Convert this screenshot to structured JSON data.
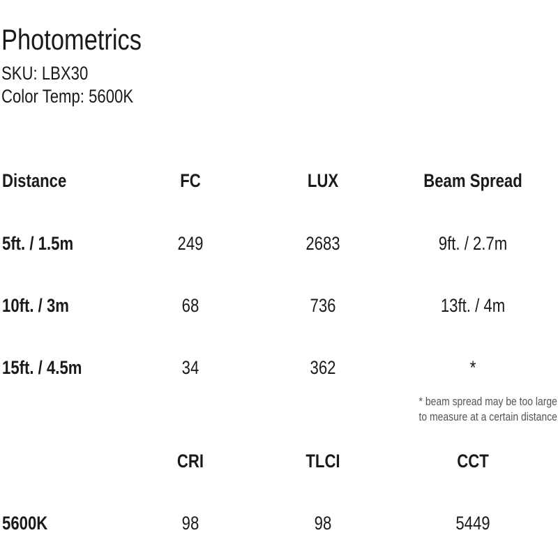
{
  "title": "Photometrics",
  "sku": "SKU: LBX30",
  "color_temp": "Color Temp: 5600K",
  "photometric_table": {
    "headers": [
      "Distance",
      "FC",
      "LUX",
      "Beam Spread"
    ],
    "rows": [
      [
        "5ft. / 1.5m",
        "249",
        "2683",
        "9ft. / 2.7m"
      ],
      [
        "10ft. / 3m",
        "68",
        "736",
        "13ft. / 4m"
      ],
      [
        "15ft. / 4.5m",
        "34",
        "362",
        "*"
      ]
    ],
    "footnote": [
      "* beam spread may be too large",
      "to measure at a certain distance"
    ]
  },
  "color_table": {
    "headers": [
      "",
      "CRI",
      "TLCI",
      "CCT"
    ],
    "rows": [
      [
        "5600K",
        "98",
        "98",
        "5449"
      ]
    ]
  }
}
